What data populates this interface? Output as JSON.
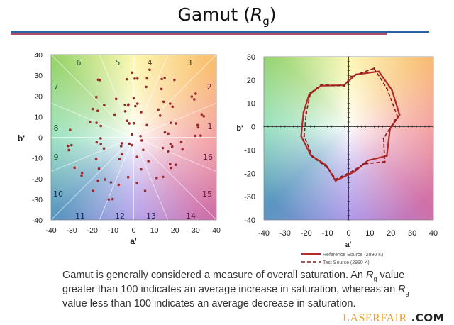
{
  "title": {
    "text": "Gamut (",
    "italic": "R",
    "sub": "g",
    "close": ")"
  },
  "colors": {
    "rule_blue": "#2a62a8",
    "rule_red": "#b04a6a",
    "points": "#9a2a2a",
    "reference": "#b22a2a",
    "test": "#8a1a1a"
  },
  "chart_data": [
    {
      "type": "scatter",
      "xlabel": "a'",
      "ylabel": "b'",
      "xlim": [
        -40,
        40
      ],
      "ylim": [
        -40,
        40
      ],
      "xticks": [
        "-40",
        "-30",
        "-20",
        "-10",
        "0",
        "10",
        "20",
        "30",
        "40"
      ],
      "yticks": [
        "40",
        "30",
        "20",
        "10",
        "0",
        "-10",
        "-20",
        "-30",
        "-40"
      ],
      "background": "hue color wheel",
      "hue_bins": 16,
      "bin_labels": [
        "1",
        "2",
        "3",
        "4",
        "5",
        "6",
        "7",
        "8",
        "9",
        "10",
        "11",
        "12",
        "13",
        "14",
        "15",
        "16"
      ],
      "points": [
        [
          -0.7,
          31.3
        ],
        [
          7.7,
          32.7
        ],
        [
          -3.4,
          28.1
        ],
        [
          0.5,
          28.4
        ],
        [
          1.8,
          28.4
        ],
        [
          6.4,
          28.5
        ],
        [
          6.0,
          24.4
        ],
        [
          13.6,
          28.2
        ],
        [
          15.0,
          28.8
        ],
        [
          19.7,
          27.8
        ],
        [
          13.4,
          23.4
        ],
        [
          -17.2,
          27.9
        ],
        [
          -16.5,
          27.7
        ],
        [
          -18.1,
          19.5
        ],
        [
          -8.5,
          18.6
        ],
        [
          0,
          18.9
        ],
        [
          -4.2,
          15.7
        ],
        [
          -2.7,
          15.4
        ],
        [
          -2.6,
          15.9
        ],
        [
          0.8,
          15.1
        ],
        [
          1.8,
          16.3
        ],
        [
          3.6,
          12.2
        ],
        [
          -4.1,
          12.6
        ],
        [
          14.5,
          17.2
        ],
        [
          17.6,
          16.3
        ],
        [
          18.8,
          14.8
        ],
        [
          11.9,
          13.4
        ],
        [
          12.8,
          10.5
        ],
        [
          28.1,
          19.7
        ],
        [
          30.0,
          21.1
        ],
        [
          29.3,
          18.4
        ],
        [
          32.9,
          11.1
        ],
        [
          30.9,
          5.9
        ],
        [
          33.9,
          10.2
        ],
        [
          29.8,
          0.7
        ],
        [
          32.4,
          0.8
        ],
        [
          31.2,
          4.8
        ],
        [
          -19.9,
          13.7
        ],
        [
          -17.4,
          12.8
        ],
        [
          -14.3,
          15.5
        ],
        [
          -9.2,
          11.0
        ],
        [
          -21.2,
          7.3
        ],
        [
          -18.0,
          7.0
        ],
        [
          -15.9,
          5.5
        ],
        [
          -3.2,
          8.0
        ],
        [
          -2.2,
          6.7
        ],
        [
          0.1,
          6.8
        ],
        [
          6.4,
          5.9
        ],
        [
          17.9,
          7.0
        ],
        [
          20.4,
          6.7
        ],
        [
          15.1,
          2.4
        ],
        [
          16.7,
          1.8
        ],
        [
          -0.8,
          1.3
        ],
        [
          3.3,
          0.6
        ],
        [
          3.9,
          -1.5
        ],
        [
          -16.0,
          -0.5
        ],
        [
          -15.9,
          -3.3
        ],
        [
          -17.9,
          -2.4
        ],
        [
          -14.4,
          -5.4
        ],
        [
          -5.8,
          -2.9
        ],
        [
          -6.1,
          -4.3
        ],
        [
          -2.1,
          -3.1
        ],
        [
          -1.0,
          -3.8
        ],
        [
          -6.8,
          -10.5
        ],
        [
          -5.8,
          -8.2
        ],
        [
          4.6,
          -6.1
        ],
        [
          14.1,
          -5.2
        ],
        [
          16.6,
          -6.8
        ],
        [
          17.8,
          -3.3
        ],
        [
          18.6,
          -4.5
        ],
        [
          23.0,
          -2.2
        ],
        [
          23.6,
          -5.9
        ],
        [
          -30.8,
          3.6
        ],
        [
          -31.8,
          -4.2
        ],
        [
          -30.1,
          -3.8
        ],
        [
          -31.4,
          -6.2
        ],
        [
          -18.2,
          -10.5
        ],
        [
          -16.8,
          -15.2
        ],
        [
          -28.6,
          -14.7
        ],
        [
          -25.0,
          -17.2
        ],
        [
          -25.2,
          -18.5
        ],
        [
          -17.3,
          -21.0
        ],
        [
          -13.9,
          -20.4
        ],
        [
          -11.0,
          -21.8
        ],
        [
          -7.3,
          -23.0
        ],
        [
          -2.7,
          -19.3
        ],
        [
          1.6,
          -9.5
        ],
        [
          7.1,
          -11.5
        ],
        [
          3.6,
          -15.5
        ],
        [
          1.6,
          -22.1
        ],
        [
          11.1,
          -19.7
        ],
        [
          14.2,
          -19.2
        ],
        [
          17.6,
          -12.9
        ],
        [
          18.1,
          -14.8
        ],
        [
          20.4,
          -13.3
        ],
        [
          5.5,
          -26.0
        ],
        [
          -19.6,
          -25.9
        ],
        [
          -12.1,
          -30.1
        ],
        [
          -10.2,
          -29.9
        ]
      ]
    },
    {
      "type": "line",
      "xlabel": "a'",
      "ylabel": "b'",
      "xlim": [
        -40,
        40
      ],
      "ylim": [
        -40,
        30
      ],
      "xticks": [
        "-40",
        "-30",
        "-20",
        "-10",
        "0",
        "10",
        "20",
        "30",
        "40"
      ],
      "yticks": [
        "30",
        "20",
        "10",
        "0",
        "-10",
        "-20",
        "-30",
        "-40"
      ],
      "background": "hue color wheel",
      "legend": "bottom",
      "series": [
        {
          "name": "Reference Source (2990 K)",
          "style": "solid",
          "points": [
            [
              14.2,
              23.7
            ],
            [
              20.4,
              15.8
            ],
            [
              24.0,
              5.1
            ],
            [
              19.5,
              -1.0
            ],
            [
              18.0,
              -12.5
            ],
            [
              9.0,
              -14.5
            ],
            [
              2.8,
              -19.3
            ],
            [
              -6.2,
              -23.2
            ],
            [
              -10.6,
              -16.5
            ],
            [
              -17.9,
              -12.2
            ],
            [
              -22.4,
              -4.0
            ],
            [
              -21.3,
              6.1
            ],
            [
              -18.7,
              13.7
            ],
            [
              -13.1,
              17.6
            ],
            [
              -2.2,
              17.8
            ],
            [
              3.4,
              22.4
            ]
          ]
        },
        {
          "name": "Test Source (2990 K)",
          "style": "dashed",
          "points": [
            [
              12.0,
              25.0
            ],
            [
              18.0,
              16.5
            ],
            [
              23.0,
              4.5
            ],
            [
              16.5,
              -5.0
            ],
            [
              17.0,
              -15.0
            ],
            [
              7.0,
              -16.0
            ],
            [
              2.0,
              -19.0
            ],
            [
              -6.0,
              -22.5
            ],
            [
              -10.0,
              -17.5
            ],
            [
              -17.0,
              -13.0
            ],
            [
              -21.0,
              -4.0
            ],
            [
              -20.0,
              6.0
            ],
            [
              -18.0,
              14.5
            ],
            [
              -13.0,
              18.0
            ],
            [
              -2.0,
              17.5
            ],
            [
              1.0,
              21.5
            ]
          ]
        }
      ]
    }
  ],
  "body": {
    "line1a": "Gamut is generally considered a measure of overall saturation. An ",
    "r": "R",
    "g": "g",
    "line1b": " value greater than 100 indicates an average increase in saturation, whereas an ",
    "line2b": " value less than 100 indicates an average decrease in saturation."
  },
  "watermark": {
    "brand": "LASERFAIR",
    "tld": ".COM"
  }
}
